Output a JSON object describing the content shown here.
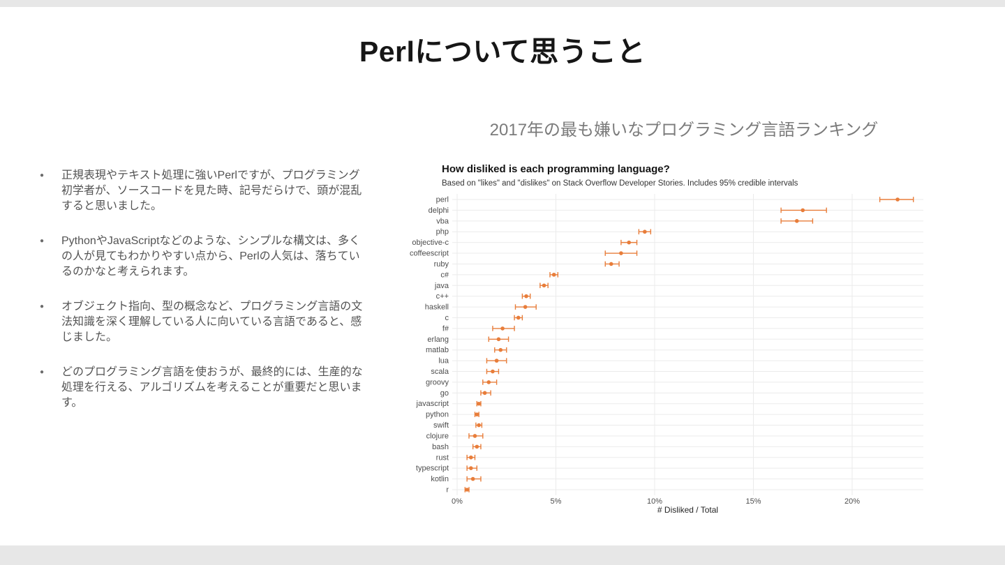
{
  "page": {
    "background": "#e7e7e7",
    "slide_background": "#ffffff"
  },
  "slide": {
    "title": "Perlについて思うこと",
    "chart_heading": "2017年の最も嫌いなプログラミング言語ランキング",
    "bullets": [
      "正規表現やテキスト処理に強いPerlですが、プログラミング初学者が、ソースコードを見た時、記号だらけで、頭が混乱すると思いました。",
      "PythonやJavaScriptなどのような、シンプルな構文は、多くの人が見てもわかりやすい点から、Perlの人気は、落ちているのかなと考えられます。",
      "オブジェクト指向、型の概念など、プログラミング言語の文法知識を深く理解している人に向いている言語であると、感じました。",
      "どのプログラミング言語を使おうが、最終的には、生産的な処理を行える、アルゴリズムを考えることが重要だと思います。"
    ]
  },
  "chart_data": {
    "type": "scatter",
    "title": "How disliked is each programming language?",
    "subtitle": "Based on \"likes\" and \"dislikes\" on Stack Overflow Developer Stories. Includes 95% credible intervals",
    "xlabel": "# Disliked / Total",
    "xlim": [
      -0.3,
      23.6
    ],
    "grid": true,
    "legend": "none",
    "point_color": "#e87d3a",
    "gridline_color": "#ebebeb",
    "axis_text_color": "#4d4d4d",
    "ticks": [
      {
        "value": 0,
        "label": "0%"
      },
      {
        "value": 5,
        "label": "5%"
      },
      {
        "value": 10,
        "label": "10%"
      },
      {
        "value": 15,
        "label": "15%"
      },
      {
        "value": 20,
        "label": "20%"
      }
    ],
    "series": [
      {
        "language": "perl",
        "value": 22.3,
        "low": 21.4,
        "high": 23.1
      },
      {
        "language": "delphi",
        "value": 17.5,
        "low": 16.4,
        "high": 18.7
      },
      {
        "language": "vba",
        "value": 17.2,
        "low": 16.4,
        "high": 18.0
      },
      {
        "language": "php",
        "value": 9.5,
        "low": 9.2,
        "high": 9.8
      },
      {
        "language": "objective-c",
        "value": 8.7,
        "low": 8.3,
        "high": 9.1
      },
      {
        "language": "coffeescript",
        "value": 8.3,
        "low": 7.5,
        "high": 9.1
      },
      {
        "language": "ruby",
        "value": 7.8,
        "low": 7.5,
        "high": 8.2
      },
      {
        "language": "c#",
        "value": 4.9,
        "low": 4.7,
        "high": 5.1
      },
      {
        "language": "java",
        "value": 4.4,
        "low": 4.2,
        "high": 4.6
      },
      {
        "language": "c++",
        "value": 3.5,
        "low": 3.3,
        "high": 3.7
      },
      {
        "language": "haskell",
        "value": 3.45,
        "low": 2.95,
        "high": 4.0
      },
      {
        "language": "c",
        "value": 3.1,
        "low": 2.9,
        "high": 3.3
      },
      {
        "language": "f#",
        "value": 2.3,
        "low": 1.8,
        "high": 2.9
      },
      {
        "language": "erlang",
        "value": 2.1,
        "low": 1.6,
        "high": 2.6
      },
      {
        "language": "matlab",
        "value": 2.2,
        "low": 1.9,
        "high": 2.5
      },
      {
        "language": "lua",
        "value": 2.0,
        "low": 1.5,
        "high": 2.5
      },
      {
        "language": "scala",
        "value": 1.8,
        "low": 1.5,
        "high": 2.1
      },
      {
        "language": "groovy",
        "value": 1.6,
        "low": 1.3,
        "high": 2.0
      },
      {
        "language": "go",
        "value": 1.4,
        "low": 1.2,
        "high": 1.7
      },
      {
        "language": "javascript",
        "value": 1.1,
        "low": 1.0,
        "high": 1.2
      },
      {
        "language": "python",
        "value": 1.0,
        "low": 0.9,
        "high": 1.1
      },
      {
        "language": "swift",
        "value": 1.1,
        "low": 0.95,
        "high": 1.25
      },
      {
        "language": "clojure",
        "value": 0.9,
        "low": 0.6,
        "high": 1.3
      },
      {
        "language": "bash",
        "value": 1.0,
        "low": 0.8,
        "high": 1.2
      },
      {
        "language": "rust",
        "value": 0.7,
        "low": 0.5,
        "high": 0.9
      },
      {
        "language": "typescript",
        "value": 0.7,
        "low": 0.5,
        "high": 1.0
      },
      {
        "language": "kotlin",
        "value": 0.8,
        "low": 0.5,
        "high": 1.2
      },
      {
        "language": "r",
        "value": 0.5,
        "low": 0.4,
        "high": 0.6
      }
    ]
  }
}
